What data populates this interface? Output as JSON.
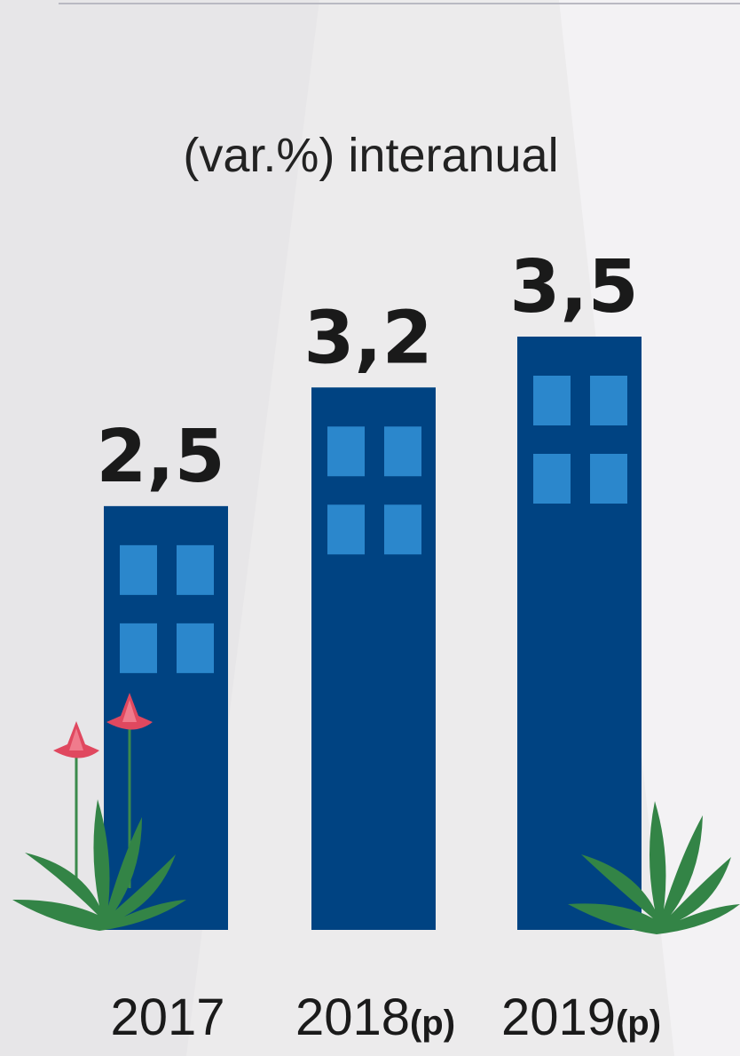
{
  "chart_data": {
    "type": "bar",
    "subtitle": "(var.%) interanual",
    "categories": [
      "2017",
      "2018(p)",
      "2019(p)"
    ],
    "values": [
      2.5,
      3.2,
      3.5
    ],
    "value_labels": [
      "2,5",
      "3,2",
      "3,5"
    ],
    "color": "#004382",
    "window_color": "#2b87cc",
    "ylim": [
      0,
      3.5
    ]
  }
}
